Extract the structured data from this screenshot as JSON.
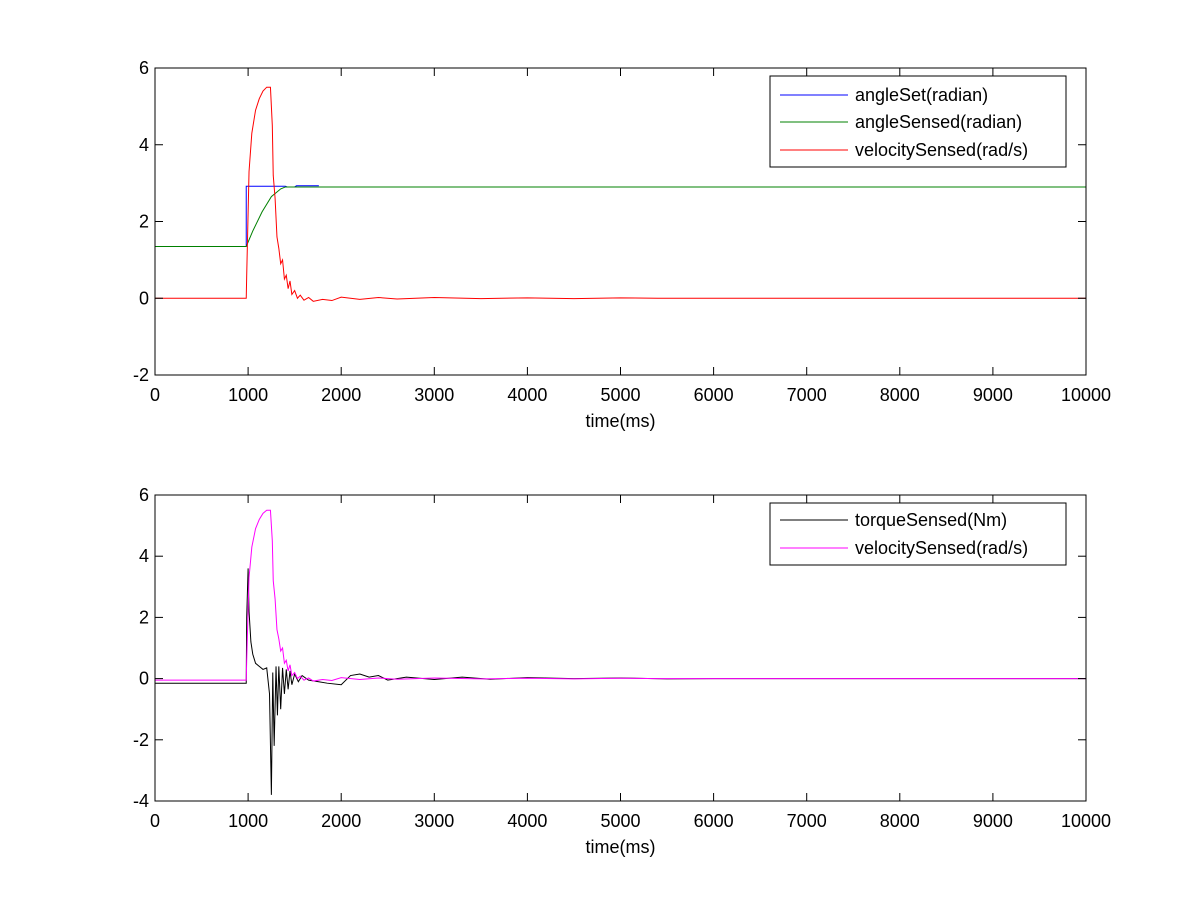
{
  "chart_data": [
    {
      "type": "line",
      "title": "",
      "xlabel": "time(ms)",
      "ylabel": "",
      "xlim": [
        0,
        10000
      ],
      "ylim": [
        -2,
        6
      ],
      "x_ticks": [
        0,
        1000,
        2000,
        3000,
        4000,
        5000,
        6000,
        7000,
        8000,
        9000,
        10000
      ],
      "x_tick_labels": [
        "0",
        "1000",
        "2000",
        "3000",
        "4000",
        "5000",
        "6000",
        "7000",
        "8000",
        "9000",
        "10000"
      ],
      "y_ticks": [
        -2,
        0,
        2,
        4,
        6
      ],
      "y_tick_labels": [
        "-2",
        "0",
        "2",
        "4",
        "6"
      ],
      "grid": false,
      "legend_position": "top-right",
      "series": [
        {
          "name": "angleSet(radian)",
          "color": "#0000ff",
          "x": [
            0,
            980,
            980,
            1400,
            1420,
            1500,
            1520,
            1760
          ],
          "y": [
            1.35,
            1.35,
            2.92,
            2.92,
            2.9,
            2.9,
            2.93,
            2.93
          ]
        },
        {
          "name": "angleSensed(radian)",
          "color": "#008000",
          "x": [
            0,
            980,
            1050,
            1150,
            1250,
            1350,
            1400,
            1500,
            10000
          ],
          "y": [
            1.35,
            1.35,
            1.75,
            2.25,
            2.65,
            2.85,
            2.9,
            2.9,
            2.9
          ]
        },
        {
          "name": "velocitySensed(rad/s)",
          "color": "#ff0000",
          "x": [
            0,
            980,
            985,
            1010,
            1040,
            1080,
            1120,
            1160,
            1200,
            1240,
            1260,
            1270,
            1290,
            1310,
            1330,
            1350,
            1370,
            1390,
            1410,
            1430,
            1450,
            1470,
            1500,
            1530,
            1560,
            1600,
            1650,
            1700,
            1800,
            1900,
            2000,
            2200,
            2400,
            2600,
            3000,
            3500,
            4000,
            4500,
            5000,
            5400,
            6000,
            10000
          ],
          "y": [
            0,
            0,
            0.6,
            3.3,
            4.3,
            4.9,
            5.2,
            5.4,
            5.5,
            5.5,
            4.5,
            3.2,
            2.6,
            1.6,
            1.3,
            0.9,
            1.0,
            0.5,
            0.6,
            0.25,
            0.45,
            0.1,
            0.2,
            0.0,
            0.08,
            -0.05,
            0.02,
            -0.08,
            -0.03,
            -0.06,
            0.03,
            -0.03,
            0.02,
            -0.02,
            0.02,
            -0.01,
            0.01,
            -0.01,
            0.01,
            0,
            0,
            0
          ]
        }
      ]
    },
    {
      "type": "line",
      "title": "",
      "xlabel": "time(ms)",
      "ylabel": "",
      "xlim": [
        0,
        10000
      ],
      "ylim": [
        -4,
        6
      ],
      "x_ticks": [
        0,
        1000,
        2000,
        3000,
        4000,
        5000,
        6000,
        7000,
        8000,
        9000,
        10000
      ],
      "x_tick_labels": [
        "0",
        "1000",
        "2000",
        "3000",
        "4000",
        "5000",
        "6000",
        "7000",
        "8000",
        "9000",
        "10000"
      ],
      "y_ticks": [
        -4,
        -2,
        0,
        2,
        4,
        6
      ],
      "y_tick_labels": [
        "-4",
        "-2",
        "0",
        "2",
        "4",
        "6"
      ],
      "grid": false,
      "legend_position": "top-right",
      "series": [
        {
          "name": "torqueSensed(Nm)",
          "color": "#000000",
          "x": [
            0,
            980,
            985,
            1000,
            1010,
            1030,
            1050,
            1080,
            1120,
            1160,
            1200,
            1230,
            1250,
            1265,
            1280,
            1300,
            1315,
            1330,
            1350,
            1370,
            1390,
            1410,
            1430,
            1450,
            1470,
            1500,
            1540,
            1580,
            1650,
            1750,
            1850,
            2000,
            2100,
            2200,
            2300,
            2400,
            2500,
            2700,
            3000,
            3300,
            3600,
            4000,
            4500,
            5000,
            5500,
            6000,
            7000,
            8000,
            9000,
            10000
          ],
          "y": [
            -0.15,
            -0.15,
            2.0,
            3.6,
            2.2,
            1.2,
            0.8,
            0.5,
            0.4,
            0.3,
            0.35,
            -0.5,
            -3.8,
            0.2,
            -2.2,
            0.4,
            -1.2,
            0.4,
            -1.0,
            0.35,
            -0.5,
            0.3,
            -0.35,
            0.25,
            -0.2,
            0.15,
            -0.1,
            0.1,
            -0.05,
            -0.1,
            -0.15,
            -0.2,
            0.1,
            0.15,
            0.05,
            0.1,
            -0.05,
            0.05,
            -0.03,
            0.05,
            -0.02,
            0.03,
            0,
            0.02,
            -0.01,
            0,
            0,
            0,
            0,
            0
          ]
        },
        {
          "name": "velocitySensed(rad/s)",
          "color": "#ff00ff",
          "x": [
            0,
            980,
            985,
            1010,
            1040,
            1080,
            1120,
            1160,
            1200,
            1240,
            1260,
            1270,
            1290,
            1310,
            1330,
            1350,
            1370,
            1390,
            1410,
            1430,
            1450,
            1470,
            1500,
            1530,
            1560,
            1600,
            1650,
            1700,
            1800,
            1900,
            2000,
            2200,
            2400,
            2600,
            3000,
            3500,
            4000,
            4500,
            5000,
            5400,
            6000,
            10000
          ],
          "y": [
            -0.05,
            -0.05,
            0.6,
            3.3,
            4.3,
            4.9,
            5.2,
            5.4,
            5.5,
            5.5,
            4.5,
            3.2,
            2.6,
            1.6,
            1.3,
            0.9,
            1.0,
            0.5,
            0.6,
            0.25,
            0.45,
            0.1,
            0.2,
            0.0,
            0.08,
            -0.05,
            0.02,
            -0.08,
            -0.03,
            -0.06,
            0.03,
            -0.03,
            0.02,
            -0.02,
            0.02,
            -0.01,
            0.01,
            -0.01,
            0.01,
            0,
            0,
            0
          ]
        }
      ]
    }
  ]
}
